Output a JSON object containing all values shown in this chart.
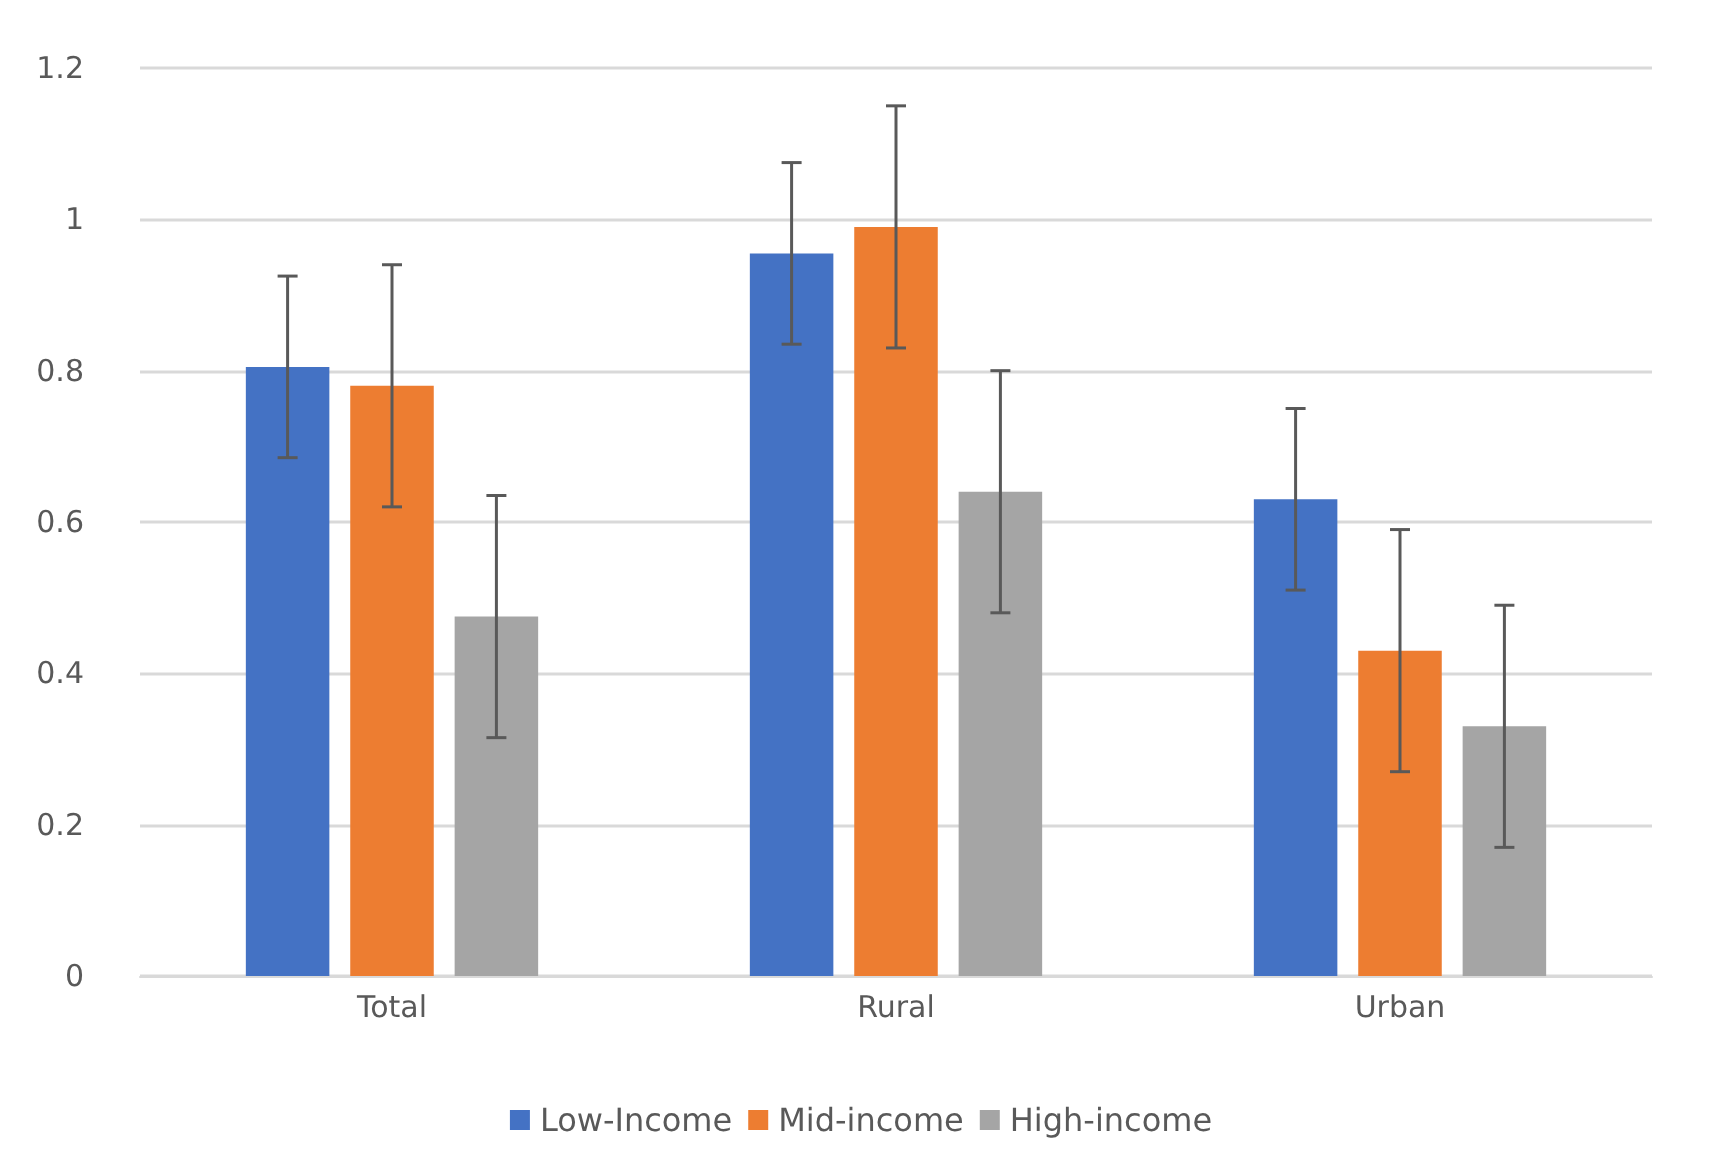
{
  "chart_data": {
    "type": "bar",
    "categories": [
      "Total",
      "Rural",
      "Urban"
    ],
    "series": [
      {
        "name": "Low-Income",
        "color": "#4472c4",
        "values": [
          0.805,
          0.955,
          0.63
        ],
        "errors": [
          0.12,
          0.12,
          0.12
        ]
      },
      {
        "name": "Mid-income",
        "color": "#ed7d31",
        "values": [
          0.78,
          0.99,
          0.43
        ],
        "errors": [
          0.16,
          0.16,
          0.16
        ]
      },
      {
        "name": "High-income",
        "color": "#a5a5a5",
        "values": [
          0.475,
          0.64,
          0.33
        ],
        "errors": [
          0.16,
          0.16,
          0.16
        ]
      }
    ],
    "ylim": [
      0,
      1.2
    ],
    "yticks": [
      0,
      0.2,
      0.4,
      0.6,
      0.8,
      1,
      1.2
    ],
    "grid": "y",
    "legend": "bottom"
  }
}
